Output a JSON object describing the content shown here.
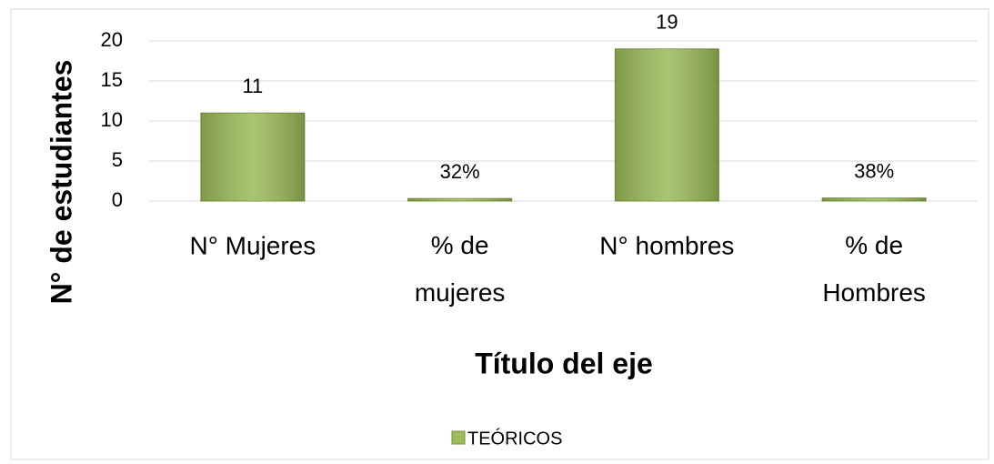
{
  "chart_data": {
    "type": "bar",
    "categories": [
      "N° Mujeres",
      "% de mujeres",
      "N° hombres",
      "% de Hombres"
    ],
    "series": [
      {
        "name": "TEÓRICOS",
        "color": "#9bbb59",
        "values": [
          11,
          0.32,
          19,
          0.38
        ],
        "value_labels": [
          "11",
          "32%",
          "19",
          "38%"
        ]
      }
    ],
    "ylim": [
      0,
      20
    ],
    "yticks": [
      0,
      5,
      10,
      15,
      20
    ],
    "grid": true,
    "ylabel": "N° de estudiantes",
    "xlabel": "Título del eje",
    "legend": "bottom"
  }
}
